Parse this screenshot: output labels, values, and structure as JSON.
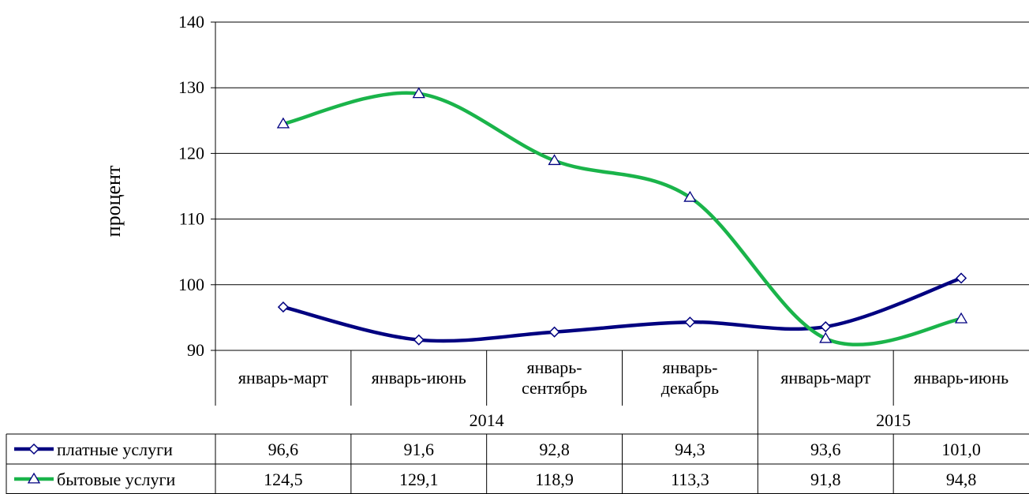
{
  "chart_data": {
    "type": "line",
    "ylabel": "процент",
    "ylim": [
      90,
      140
    ],
    "yticks": [
      90,
      100,
      110,
      120,
      130,
      140
    ],
    "grid": true,
    "categories": [
      {
        "lines": [
          "январь-март"
        ]
      },
      {
        "lines": [
          "январь-июнь"
        ]
      },
      {
        "lines": [
          "январь-",
          "сентябрь"
        ]
      },
      {
        "lines": [
          "январь-",
          "декабрь"
        ]
      },
      {
        "lines": [
          "январь-март"
        ]
      },
      {
        "lines": [
          "январь-июнь"
        ]
      }
    ],
    "year_groups": [
      {
        "label": "2014",
        "from": 0,
        "to": 3
      },
      {
        "label": "2015",
        "from": 4,
        "to": 5
      }
    ],
    "series": [
      {
        "name": "платные услуги",
        "color": "#000080",
        "marker": "diamond",
        "values": [
          96.6,
          91.6,
          92.8,
          94.3,
          93.6,
          101.0
        ],
        "labels": [
          "96,6",
          "91,6",
          "92,8",
          "94,3",
          "93,6",
          "101,0"
        ]
      },
      {
        "name": "бытовые услуги",
        "color": "#1ab44a",
        "marker": "triangle",
        "values": [
          124.5,
          129.1,
          118.9,
          113.3,
          91.8,
          94.8
        ],
        "labels": [
          "124,5",
          "129,1",
          "118,9",
          "113,3",
          "91,8",
          "94,8"
        ]
      }
    ],
    "legend": "data-table"
  }
}
